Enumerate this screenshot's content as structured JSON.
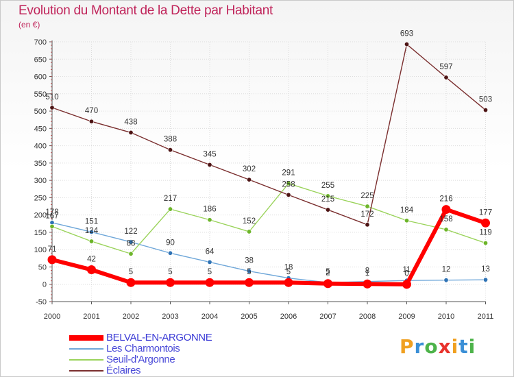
{
  "title": "Evolution du Montant de la Dette par Habitant",
  "unit_label": "(en €)",
  "logo": {
    "text": "Proxiti",
    "letters": [
      "P",
      "r",
      "o",
      "x",
      "i",
      "t",
      "i"
    ],
    "colors": [
      "#f0a020",
      "#3a8fd6",
      "#4db34a",
      "#e8322c",
      "#f0a020",
      "#3a8fd6",
      "#4db34a"
    ]
  },
  "chart_data": {
    "type": "line",
    "title": "Evolution du Montant de la Dette par Habitant",
    "ylabel": "(en €)",
    "xlabel": "",
    "ylim": [
      -50,
      700
    ],
    "yticks": [
      -50,
      0,
      50,
      100,
      150,
      200,
      250,
      300,
      350,
      400,
      450,
      500,
      550,
      600,
      650,
      700
    ],
    "categories": [
      "2000",
      "2001",
      "2002",
      "2003",
      "2004",
      "2005",
      "2006",
      "2007",
      "2008",
      "2009",
      "2010",
      "2011"
    ],
    "legend_position": "bottom-left",
    "series": [
      {
        "name": "BELVAL-EN-ARGONNE",
        "color": "#ff0000",
        "style": "thick",
        "values": [
          71,
          42,
          5,
          5,
          5,
          5,
          5,
          2,
          1,
          0,
          216,
          177
        ],
        "labels": [
          "71",
          "42",
          "5",
          "5",
          "5",
          "5",
          "5",
          "2",
          "1",
          "0",
          "216",
          "177"
        ]
      },
      {
        "name": "Les Charmontois",
        "color": "#6fa7d9",
        "style": "thin",
        "values": [
          178,
          151,
          122,
          90,
          64,
          38,
          18,
          5,
          8,
          11,
          12,
          13
        ],
        "labels": [
          "178",
          "151",
          "122",
          "90",
          "64",
          "38",
          "18",
          "5",
          "8",
          "11",
          "12",
          "13"
        ]
      },
      {
        "name": "Seuil-d'Argonne",
        "color": "#9ad35a",
        "style": "thin",
        "values": [
          167,
          124,
          88,
          217,
          186,
          152,
          291,
          255,
          225,
          184,
          158,
          119
        ],
        "labels": [
          "167",
          "124",
          "88",
          "217",
          "186",
          "152",
          "291",
          "255",
          "225",
          "184",
          "158",
          "119"
        ]
      },
      {
        "name": "Éclaires",
        "color": "#7a2e2e",
        "style": "thin",
        "values": [
          510,
          470,
          438,
          388,
          345,
          302,
          258,
          215,
          172,
          693,
          597,
          503
        ],
        "labels": [
          "510",
          "470",
          "438",
          "388",
          "345",
          "302",
          "258",
          "215",
          "172",
          "693",
          "597",
          "503"
        ]
      }
    ]
  }
}
